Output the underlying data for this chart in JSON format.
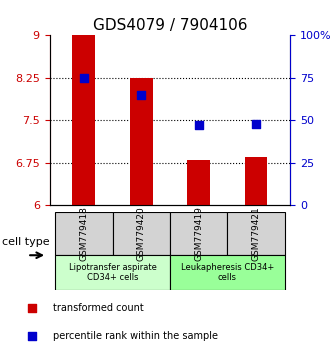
{
  "title": "GDS4079 / 7904106",
  "samples": [
    "GSM779418",
    "GSM779420",
    "GSM779419",
    "GSM779421"
  ],
  "transformed_counts": [
    9.0,
    8.25,
    6.8,
    6.85
  ],
  "percentile_ranks": [
    75,
    65,
    47,
    48
  ],
  "y_min": 6,
  "y_max": 9,
  "y_ticks_left": [
    6,
    6.75,
    7.5,
    8.25,
    9
  ],
  "y_ticks_right": [
    0,
    25,
    50,
    75,
    100
  ],
  "ytick_labels_left": [
    "6",
    "6.75",
    "7.5",
    "8.25",
    "9"
  ],
  "ytick_labels_right": [
    "0",
    "25",
    "50",
    "75",
    "100%"
  ],
  "grid_lines": [
    6.75,
    7.5,
    8.25
  ],
  "groups": [
    {
      "label": "Lipotransfer aspirate\nCD34+ cells",
      "samples": [
        0,
        1
      ],
      "color": "#ccffcc"
    },
    {
      "label": "Leukapheresis CD34+\ncells",
      "samples": [
        2,
        3
      ],
      "color": "#99ff99"
    }
  ],
  "bar_color": "#cc0000",
  "point_color": "#0000cc",
  "bar_width": 0.4,
  "cell_type_label": "cell type",
  "legend_entries": [
    {
      "label": "transformed count",
      "color": "#cc0000",
      "marker": "s"
    },
    {
      "label": "percentile rank within the sample",
      "color": "#0000cc",
      "marker": "s"
    }
  ]
}
